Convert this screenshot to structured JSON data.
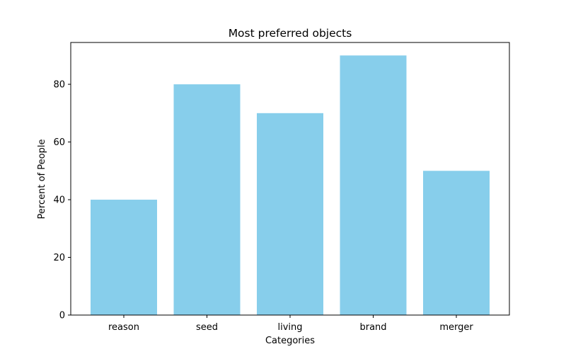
{
  "chart_data": {
    "type": "bar",
    "title": "Most preferred objects",
    "xlabel": "Categories",
    "ylabel": "Percent of People",
    "categories": [
      "reason",
      "seed",
      "living",
      "brand",
      "merger"
    ],
    "values": [
      40,
      80,
      70,
      90,
      50
    ],
    "yticks": [
      0,
      20,
      40,
      60,
      80
    ],
    "ylim": [
      0,
      94.5
    ],
    "grid": false,
    "legend": "none",
    "bar_color": "#87ceeb"
  }
}
